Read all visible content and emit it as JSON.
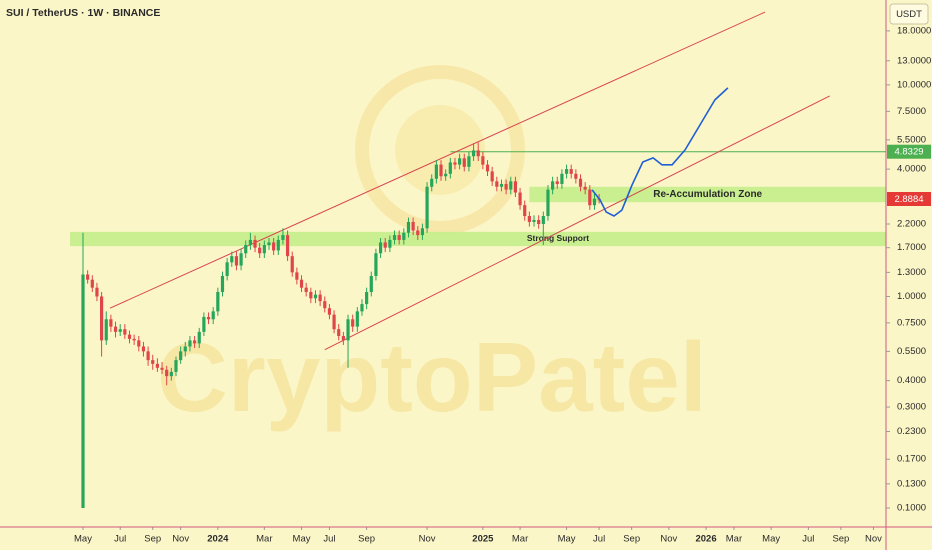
{
  "chart_data": {
    "type": "candlestick",
    "title": "SUI / TetherUS · 1W · BINANCE",
    "currency": "USDT",
    "watermark": "CryptoPatel",
    "log_scale": true,
    "up_color": "#26a65b",
    "down_color": "#e0454a",
    "ylim": [
      0.0813,
      25.2
    ],
    "yticks": [
      {
        "value": 18,
        "label": "18.0000"
      },
      {
        "value": 13,
        "label": "13.0000"
      },
      {
        "value": 10,
        "label": "10.0000"
      },
      {
        "value": 7.5,
        "label": "7.5000"
      },
      {
        "value": 5.5,
        "label": "5.5000"
      },
      {
        "value": 4,
        "label": "4.0000"
      },
      {
        "value": 2.2,
        "label": "2.2000"
      },
      {
        "value": 1.7,
        "label": "1.7000"
      },
      {
        "value": 1.3,
        "label": "1.3000"
      },
      {
        "value": 1,
        "label": "1.0000"
      },
      {
        "value": 0.75,
        "label": "0.7500"
      },
      {
        "value": 0.55,
        "label": "0.5500"
      },
      {
        "value": 0.4,
        "label": "0.4000"
      },
      {
        "value": 0.3,
        "label": "0.3000"
      },
      {
        "value": 0.23,
        "label": "0.2300"
      },
      {
        "value": 0.17,
        "label": "0.1700"
      },
      {
        "value": 0.13,
        "label": "0.1300"
      },
      {
        "value": 0.1,
        "label": "0.1000"
      }
    ],
    "xlim": [
      -17.85,
      172.7
    ],
    "xticks": [
      {
        "value": 0,
        "label": "May"
      },
      {
        "value": 8,
        "label": "Jul"
      },
      {
        "value": 15,
        "label": "Sep"
      },
      {
        "value": 21,
        "label": "Nov"
      },
      {
        "value": 29,
        "label": "2024"
      },
      {
        "value": 39,
        "label": "Mar"
      },
      {
        "value": 47,
        "label": "May"
      },
      {
        "value": 53,
        "label": "Jul"
      },
      {
        "value": 61,
        "label": "Sep"
      },
      {
        "value": 74,
        "label": "Nov"
      },
      {
        "value": 86,
        "label": "2025"
      },
      {
        "value": 94,
        "label": "Mar"
      },
      {
        "value": 104,
        "label": "May"
      },
      {
        "value": 111,
        "label": "Jul"
      },
      {
        "value": 118,
        "label": "Sep"
      },
      {
        "value": 126,
        "label": "Nov"
      },
      {
        "value": 134,
        "label": "2026"
      },
      {
        "value": 140,
        "label": "Mar"
      },
      {
        "value": 148,
        "label": "May"
      },
      {
        "value": 156,
        "label": "Jul"
      },
      {
        "value": 163,
        "label": "Sep"
      },
      {
        "value": 170,
        "label": "Nov"
      }
    ],
    "open": [
      0.1,
      1.27,
      1.2,
      1.1,
      1.0,
      0.62,
      0.78,
      0.72,
      0.68,
      0.7,
      0.66,
      0.63,
      0.62,
      0.58,
      0.55,
      0.5,
      0.48,
      0.46,
      0.45,
      0.42,
      0.44,
      0.5,
      0.55,
      0.58,
      0.62,
      0.6,
      0.68,
      0.8,
      0.78,
      0.85,
      1.05,
      1.25,
      1.45,
      1.55,
      1.4,
      1.6,
      1.75,
      1.85,
      1.7,
      1.6,
      1.75,
      1.8,
      1.65,
      1.85,
      1.95,
      1.55,
      1.3,
      1.2,
      1.1,
      1.05,
      0.98,
      1.02,
      0.95,
      0.88,
      0.82,
      0.7,
      0.65,
      0.62,
      0.78,
      0.72,
      0.85,
      0.92,
      1.05,
      1.25,
      1.6,
      1.8,
      1.7,
      1.85,
      1.95,
      1.85,
      2.0,
      2.25,
      2.05,
      1.95,
      2.1,
      3.3,
      3.6,
      4.2,
      3.7,
      3.8,
      4.3,
      4.2,
      4.5,
      4.1,
      4.6,
      4.9,
      4.6,
      4.2,
      3.9,
      3.5,
      3.3,
      3.4,
      3.2,
      3.5,
      3.1,
      2.7,
      2.4,
      2.25,
      2.3,
      2.2,
      2.4,
      3.2,
      3.5,
      3.4,
      3.8,
      4.0,
      3.8,
      3.6,
      3.3,
      3.2,
      2.7,
      2.9
    ],
    "high": [
      2.0,
      1.33,
      1.26,
      1.16,
      1.05,
      0.85,
      0.82,
      0.76,
      0.74,
      0.74,
      0.69,
      0.66,
      0.65,
      0.61,
      0.58,
      0.53,
      0.51,
      0.49,
      0.47,
      0.46,
      0.52,
      0.58,
      0.61,
      0.65,
      0.65,
      0.71,
      0.84,
      0.84,
      0.89,
      1.1,
      1.31,
      1.52,
      1.63,
      1.63,
      1.68,
      1.84,
      2.0,
      1.94,
      1.79,
      1.84,
      1.89,
      1.89,
      1.94,
      2.1,
      2.05,
      1.63,
      1.37,
      1.26,
      1.16,
      1.1,
      1.07,
      1.07,
      1.0,
      0.92,
      0.86,
      0.74,
      0.68,
      0.82,
      0.82,
      0.89,
      0.97,
      1.1,
      1.31,
      1.68,
      1.89,
      1.89,
      1.94,
      2.05,
      2.05,
      2.1,
      2.36,
      2.36,
      2.15,
      2.21,
      3.47,
      3.78,
      4.41,
      4.41,
      3.99,
      4.52,
      4.52,
      4.73,
      4.73,
      4.83,
      5.3,
      5.35,
      4.83,
      4.41,
      4.1,
      3.68,
      3.57,
      3.57,
      3.68,
      3.68,
      3.26,
      2.84,
      2.52,
      2.42,
      2.42,
      2.52,
      3.36,
      3.68,
      3.68,
      3.99,
      4.2,
      4.2,
      3.99,
      3.78,
      3.47,
      3.36,
      3.05,
      3.05
    ],
    "low": [
      0.1,
      1.15,
      1.05,
      0.95,
      0.52,
      0.59,
      0.68,
      0.64,
      0.65,
      0.63,
      0.6,
      0.59,
      0.55,
      0.52,
      0.47,
      0.45,
      0.44,
      0.43,
      0.38,
      0.4,
      0.42,
      0.48,
      0.52,
      0.55,
      0.57,
      0.57,
      0.65,
      0.74,
      0.74,
      0.81,
      1.0,
      1.19,
      1.38,
      1.33,
      1.33,
      1.52,
      1.66,
      1.62,
      1.52,
      1.52,
      1.66,
      1.57,
      1.57,
      1.76,
      1.47,
      1.24,
      1.14,
      1.05,
      1.0,
      0.93,
      0.93,
      0.9,
      0.84,
      0.78,
      0.67,
      0.62,
      0.59,
      0.46,
      0.68,
      0.68,
      0.81,
      0.87,
      1.0,
      1.19,
      1.52,
      1.62,
      1.62,
      1.76,
      1.76,
      1.76,
      1.9,
      1.95,
      1.85,
      1.85,
      2.0,
      3.14,
      3.42,
      3.52,
      3.52,
      3.61,
      3.99,
      3.99,
      3.9,
      3.9,
      4.37,
      4.37,
      3.99,
      3.71,
      3.33,
      3.14,
      3.14,
      3.04,
      3.04,
      2.95,
      2.57,
      2.28,
      2.14,
      2.14,
      2.09,
      1.75,
      2.28,
      3.04,
      3.23,
      3.23,
      3.61,
      3.61,
      3.42,
      3.14,
      3.04,
      2.57,
      2.57,
      2.75
    ],
    "close": [
      1.27,
      1.2,
      1.1,
      1.0,
      0.62,
      0.78,
      0.72,
      0.68,
      0.7,
      0.66,
      0.63,
      0.62,
      0.58,
      0.55,
      0.5,
      0.48,
      0.46,
      0.45,
      0.42,
      0.44,
      0.5,
      0.55,
      0.58,
      0.62,
      0.6,
      0.68,
      0.8,
      0.78,
      0.85,
      1.05,
      1.25,
      1.45,
      1.55,
      1.4,
      1.6,
      1.75,
      1.85,
      1.7,
      1.6,
      1.75,
      1.8,
      1.65,
      1.85,
      1.95,
      1.55,
      1.3,
      1.2,
      1.1,
      1.05,
      0.98,
      1.02,
      0.95,
      0.88,
      0.82,
      0.7,
      0.65,
      0.62,
      0.78,
      0.72,
      0.85,
      0.92,
      1.05,
      1.25,
      1.6,
      1.8,
      1.7,
      1.85,
      1.95,
      1.85,
      2.0,
      2.25,
      2.05,
      1.95,
      2.1,
      3.3,
      3.6,
      4.2,
      3.7,
      3.8,
      4.3,
      4.2,
      4.5,
      4.1,
      4.6,
      4.9,
      4.6,
      4.2,
      3.9,
      3.5,
      3.3,
      3.4,
      3.2,
      3.5,
      3.1,
      2.7,
      2.4,
      2.25,
      2.3,
      2.2,
      2.4,
      3.2,
      3.5,
      3.4,
      3.8,
      4.0,
      3.8,
      3.6,
      3.3,
      3.2,
      2.7,
      2.9,
      2.8884
    ],
    "channel_color": "#d9434f",
    "channel": [
      {
        "x": [
          5.8,
          146.7
        ],
        "y": [
          0.88,
          22.1
        ]
      },
      {
        "x": [
          52,
          160.6
        ],
        "y": [
          0.56,
          8.87
        ]
      }
    ],
    "zone_color": "#c3ee8a",
    "zones": [
      {
        "label": "Strong Support",
        "range": [
          1.73,
          2.02
        ],
        "x_start": -2.8
      },
      {
        "label": "Re-Accumulation Zone",
        "range": [
          2.79,
          3.3
        ],
        "x_start": 96
      }
    ],
    "resistance": {
      "value": 4.8329,
      "x_start": 79,
      "color": "#4caf50"
    },
    "last_price": {
      "value": 2.8884,
      "color": "#e53935"
    },
    "projection": {
      "color": "#1f5fd6",
      "x": [
        109.5,
        111.2,
        112.5,
        114.2,
        115.9,
        118.1,
        120.4,
        122.6,
        124.5,
        126.7,
        129.5,
        132.7,
        135.9,
        138.7
      ],
      "y": [
        3.19,
        2.86,
        2.51,
        2.4,
        2.56,
        3.37,
        4.32,
        4.52,
        4.19,
        4.19,
        4.93,
        6.47,
        8.49,
        9.68
      ]
    }
  }
}
